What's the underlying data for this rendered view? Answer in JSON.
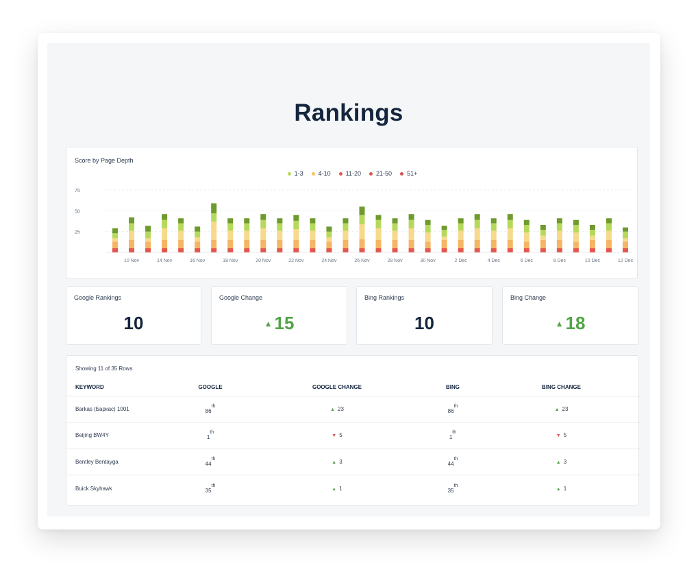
{
  "page": {
    "title": "Rankings"
  },
  "chart": {
    "title": "Score by Page Depth",
    "legend": [
      {
        "label": "1-3",
        "color": "#b6d95c"
      },
      {
        "label": "4-10",
        "color": "#f6c25e"
      },
      {
        "label": "11-20",
        "color": "#e2584d"
      },
      {
        "label": "21-50",
        "color": "#dc5a4c"
      },
      {
        "label": "51+",
        "color": "#d9534f"
      }
    ]
  },
  "chart_data": {
    "type": "bar",
    "stacked": true,
    "title": "Score by Page Depth",
    "xlabel": "",
    "ylabel": "",
    "yticks": [
      25,
      50,
      75
    ],
    "ylim": [
      0,
      75
    ],
    "grid": true,
    "legend_position": "top-center",
    "x_tick_labels": [
      "10 Nov",
      "14 Nov",
      "16 Nov",
      "18 Nov",
      "20 Nov",
      "22 Nov",
      "24 Nov",
      "26 Nov",
      "28 Nov",
      "30 Nov",
      "2 Dec",
      "4 Dec",
      "6 Dec",
      "8 Dec",
      "10 Dec",
      "12 Dec"
    ],
    "series": [
      {
        "name": "51+",
        "color": "#e2584d",
        "values": [
          5,
          5,
          5,
          5,
          5,
          5,
          5,
          5,
          5,
          5,
          5,
          5,
          5,
          5,
          5,
          5,
          5,
          5,
          5,
          5,
          5,
          5,
          5,
          5,
          5,
          5,
          5,
          5,
          5,
          5,
          5,
          5
        ]
      },
      {
        "name": "21-50",
        "color": "#f5b564",
        "values": [
          8,
          10,
          8,
          10,
          10,
          8,
          10,
          10,
          10,
          10,
          10,
          10,
          10,
          8,
          10,
          11,
          10,
          10,
          10,
          8,
          10,
          10,
          10,
          10,
          10,
          8,
          10,
          10,
          8,
          10,
          10,
          8
        ]
      },
      {
        "name": "11-20",
        "color": "#f6d98a",
        "values": [
          4,
          11,
          4,
          14,
          11,
          5,
          22,
          11,
          11,
          14,
          11,
          13,
          11,
          5,
          11,
          18,
          14,
          11,
          14,
          11,
          4,
          11,
          14,
          11,
          14,
          11,
          5,
          11,
          11,
          5,
          11,
          4
        ]
      },
      {
        "name": "1-3",
        "color": "#b6d95c",
        "values": [
          6,
          9,
          8,
          10,
          9,
          7,
          10,
          9,
          9,
          10,
          9,
          10,
          9,
          7,
          9,
          11,
          10,
          9,
          10,
          9,
          8,
          9,
          10,
          9,
          10,
          9,
          7,
          9,
          9,
          7,
          9,
          8
        ]
      },
      {
        "name": "4-10",
        "color": "#6e9a2e",
        "values": [
          6,
          7,
          7,
          7,
          6,
          6,
          12,
          6,
          6,
          7,
          6,
          7,
          6,
          6,
          6,
          10,
          6,
          6,
          7,
          6,
          5,
          6,
          7,
          6,
          7,
          6,
          6,
          6,
          6,
          6,
          6,
          5
        ]
      }
    ]
  },
  "stats": [
    {
      "label": "Google Rankings",
      "value": "10",
      "change": false
    },
    {
      "label": "Google Change",
      "value": "15",
      "change": true
    },
    {
      "label": "Bing Rankings",
      "value": "10",
      "change": false
    },
    {
      "label": "Bing Change",
      "value": "18",
      "change": true
    }
  ],
  "table": {
    "count_text": "Showing 11 of 35 Rows",
    "headers": [
      "KEYWORD",
      "GOOGLE",
      "GOOGLE CHANGE",
      "BING",
      "BING CHANGE"
    ],
    "rows": [
      {
        "keyword": "Barkas (Баркас) 1001",
        "google": "86",
        "google_sup": "th",
        "google_change": "23",
        "google_dir": "up",
        "bing": "86",
        "bing_sup": "th",
        "bing_change": "23",
        "bing_dir": "up"
      },
      {
        "keyword": "Beijing BW4Y",
        "google": "1",
        "google_sup": "th",
        "google_change": "5",
        "google_dir": "down",
        "bing": "1",
        "bing_sup": "th",
        "bing_change": "5",
        "bing_dir": "down"
      },
      {
        "keyword": "Bentley Bentayga",
        "google": "44",
        "google_sup": "th",
        "google_change": "3",
        "google_dir": "up",
        "bing": "44",
        "bing_sup": "th",
        "bing_change": "3",
        "bing_dir": "up"
      },
      {
        "keyword": "Buick Skyhawk",
        "google": "35",
        "google_sup": "th",
        "google_change": "1",
        "google_dir": "up",
        "bing": "35",
        "bing_sup": "th",
        "bing_change": "1",
        "bing_dir": "up"
      }
    ]
  }
}
